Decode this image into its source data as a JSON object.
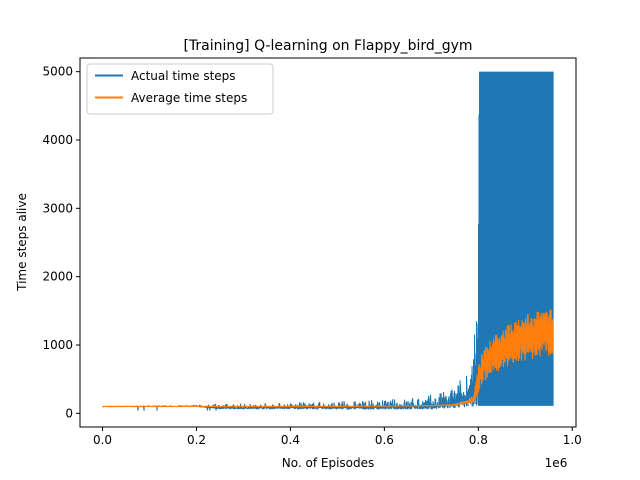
{
  "chart_data": {
    "type": "line",
    "title": "[Training] Q-learning on Flappy_bird_gym",
    "xlabel": "No. of Episodes",
    "ylabel": "Time steps alive",
    "x_offset_label": "1e6",
    "xlim": [
      -0.048,
      1.008
    ],
    "ylim": [
      -200,
      5200
    ],
    "x_ticks": [
      0.0,
      0.2,
      0.4,
      0.6,
      0.8,
      1.0
    ],
    "x_tick_labels": [
      "0.0",
      "0.2",
      "0.4",
      "0.6",
      "0.8",
      "1.0"
    ],
    "y_ticks": [
      0,
      1000,
      2000,
      3000,
      4000,
      5000
    ],
    "y_tick_labels": [
      "0",
      "1000",
      "2000",
      "3000",
      "4000",
      "5000"
    ],
    "grid": false,
    "legend_position": "top-left",
    "series": [
      {
        "name": "Actual time steps",
        "color": "#1f77b4",
        "style": "dense-noise-band",
        "x": [
          0.0,
          0.1,
          0.2,
          0.25,
          0.3,
          0.4,
          0.5,
          0.6,
          0.65,
          0.7,
          0.73,
          0.75,
          0.77,
          0.79,
          0.8,
          0.802,
          0.85,
          0.9,
          0.96
        ],
        "low": [
          95,
          95,
          93,
          60,
          60,
          60,
          55,
          55,
          55,
          55,
          60,
          70,
          80,
          100,
          110,
          110,
          110,
          110,
          110
        ],
        "high": [
          110,
          115,
          125,
          140,
          150,
          160,
          180,
          200,
          230,
          280,
          330,
          420,
          600,
          1000,
          2000,
          5000,
          5000,
          5000,
          5000
        ]
      },
      {
        "name": "Average time steps",
        "color": "#ff7f0e",
        "style": "line-band",
        "x": [
          0.0,
          0.1,
          0.2,
          0.3,
          0.4,
          0.5,
          0.6,
          0.7,
          0.75,
          0.78,
          0.79,
          0.8,
          0.81,
          0.83,
          0.85,
          0.88,
          0.9,
          0.93,
          0.96
        ],
        "low": [
          98,
          98,
          98,
          98,
          98,
          98,
          100,
          105,
          110,
          140,
          160,
          300,
          450,
          550,
          650,
          720,
          760,
          820,
          850
        ],
        "high": [
          105,
          105,
          105,
          105,
          105,
          105,
          110,
          120,
          140,
          200,
          260,
          700,
          950,
          1100,
          1250,
          1350,
          1450,
          1500,
          1550
        ]
      }
    ]
  }
}
